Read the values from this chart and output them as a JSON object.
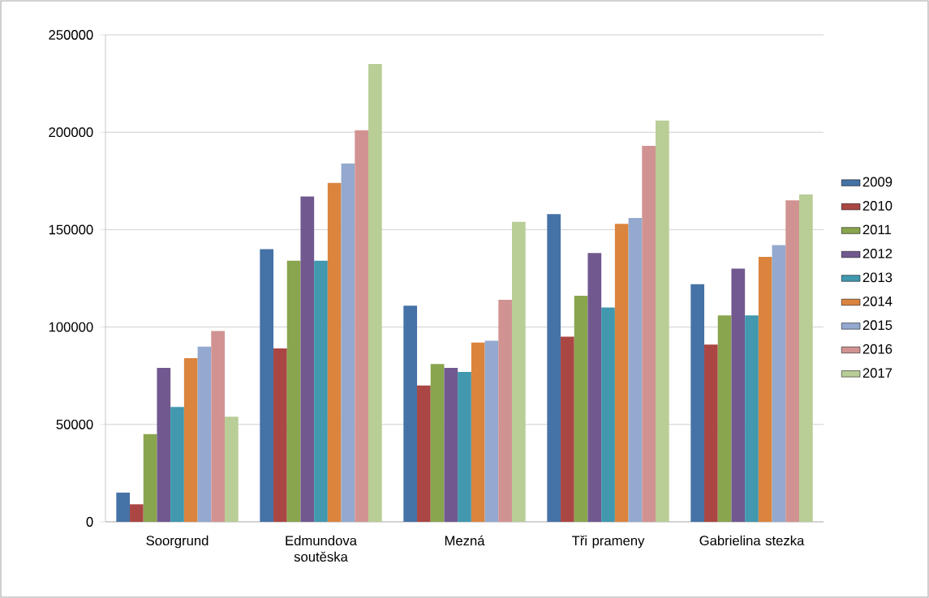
{
  "chart_data": {
    "type": "bar",
    "categories": [
      "Soorgrund",
      "Edmundova soutěska",
      "Mezná",
      "Tři prameny",
      "Gabrielina stezka"
    ],
    "series": [
      {
        "name": "2009",
        "color": "#4572a7",
        "values": [
          15000,
          140000,
          111000,
          158000,
          122000
        ]
      },
      {
        "name": "2010",
        "color": "#aa4643",
        "values": [
          9000,
          89000,
          70000,
          95000,
          91000
        ]
      },
      {
        "name": "2011",
        "color": "#89a54e",
        "values": [
          45000,
          134000,
          81000,
          116000,
          106000
        ]
      },
      {
        "name": "2012",
        "color": "#71588f",
        "values": [
          79000,
          167000,
          79000,
          138000,
          130000
        ]
      },
      {
        "name": "2013",
        "color": "#4198af",
        "values": [
          59000,
          134000,
          77000,
          110000,
          106000
        ]
      },
      {
        "name": "2014",
        "color": "#db843d",
        "values": [
          84000,
          174000,
          92000,
          153000,
          136000
        ]
      },
      {
        "name": "2015",
        "color": "#93a9cf",
        "values": [
          90000,
          184000,
          93000,
          156000,
          142000
        ]
      },
      {
        "name": "2016",
        "color": "#d19392",
        "values": [
          98000,
          201000,
          114000,
          193000,
          165000
        ]
      },
      {
        "name": "2017",
        "color": "#b9cd96",
        "values": [
          54000,
          235000,
          154000,
          206000,
          168000
        ]
      }
    ],
    "ylim": [
      0,
      250000
    ],
    "yticks": [
      0,
      50000,
      100000,
      150000,
      200000,
      250000
    ],
    "grid": "y",
    "legend": "right"
  }
}
